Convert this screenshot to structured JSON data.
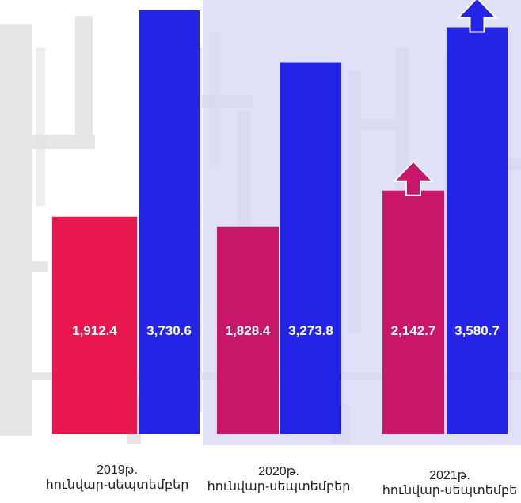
{
  "chart_data": {
    "type": "bar",
    "categories": [
      "2019թ.\nհունվար-սեպտեմբեր",
      "2020թ.\nհունվար-սեպտեմբեր",
      "2021թ.\nհունվար-սեպտեմբե"
    ],
    "series": [
      {
        "values": [
          1912.4,
          1828.4,
          2142.7
        ],
        "labels": [
          "1,912.4",
          "1,828.4",
          "2,142.7"
        ]
      },
      {
        "values": [
          3730.6,
          3273.8,
          3580.7
        ],
        "labels": [
          "3,730.6",
          "3,273.8",
          "3,580.7"
        ]
      }
    ],
    "ylim": [
      0,
      3730.6
    ],
    "grid": false,
    "legend": "none",
    "highlight_category": 1,
    "increase_arrows": [
      2
    ],
    "colors": {
      "series1": [
        "#e8174f",
        "#c8166a",
        "#c8166a"
      ],
      "series2": "#2424e6",
      "highlight_band": "#d7d6f7",
      "data_label": "#ffffff",
      "texture": "#cfcfcf"
    }
  }
}
